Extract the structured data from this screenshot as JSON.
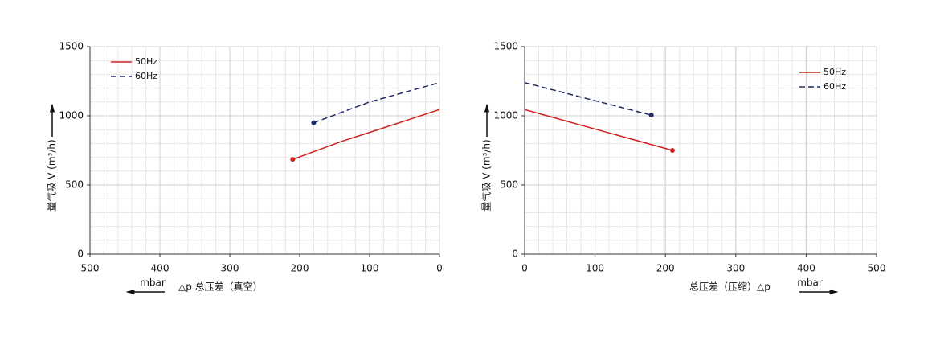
{
  "chart_data": [
    {
      "type": "line",
      "ylabel": "量气吸 V (m³/h)",
      "xlabel": "△p  总压差（真空）",
      "xunit": "mbar",
      "xunit_direction": "left",
      "xlim": [
        500,
        0
      ],
      "ylim": [
        0,
        1500
      ],
      "xticks": [
        500,
        400,
        300,
        200,
        100,
        0
      ],
      "yticks": [
        0,
        500,
        1000,
        1500
      ],
      "grid": true,
      "legend": "upper left",
      "series": [
        {
          "name": "50Hz",
          "color": "#cc2222",
          "dash": false,
          "x": [
            210,
            140,
            100,
            0
          ],
          "values": [
            685,
            815,
            880,
            1045
          ]
        },
        {
          "name": "60Hz",
          "color": "#1f2a66",
          "dash": true,
          "x": [
            180,
            100,
            0
          ],
          "values": [
            950,
            1100,
            1240
          ]
        }
      ]
    },
    {
      "type": "line",
      "ylabel": "量气吸 V (m³/h)",
      "xlabel": "总压差（压缩）△p",
      "xunit": "mbar",
      "xunit_direction": "right",
      "xlim": [
        0,
        500
      ],
      "ylim": [
        0,
        1500
      ],
      "xticks": [
        0,
        100,
        200,
        300,
        400,
        500
      ],
      "yticks": [
        0,
        500,
        1000,
        1500
      ],
      "grid": true,
      "legend": "upper right",
      "series": [
        {
          "name": "50Hz",
          "color": "#cc2222",
          "dash": false,
          "x": [
            0,
            210
          ],
          "values": [
            1045,
            750
          ]
        },
        {
          "name": "60Hz",
          "color": "#1f2a66",
          "dash": true,
          "x": [
            0,
            180
          ],
          "values": [
            1240,
            1005
          ]
        }
      ]
    }
  ]
}
